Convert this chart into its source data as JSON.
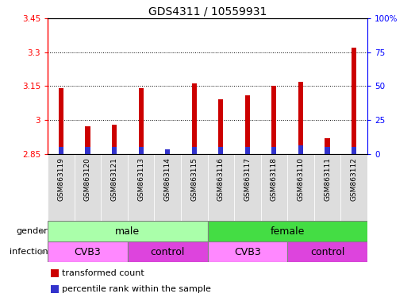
{
  "title": "GDS4311 / 10559931",
  "samples": [
    "GSM863119",
    "GSM863120",
    "GSM863121",
    "GSM863113",
    "GSM863114",
    "GSM863115",
    "GSM863116",
    "GSM863117",
    "GSM863118",
    "GSM863110",
    "GSM863111",
    "GSM863112"
  ],
  "transformed_count": [
    3.14,
    2.97,
    2.98,
    3.14,
    2.855,
    3.16,
    3.09,
    3.11,
    3.15,
    3.17,
    2.92,
    3.32
  ],
  "percentile_rank": [
    5,
    5,
    5,
    5,
    3,
    5,
    5,
    5,
    5,
    6,
    5,
    5
  ],
  "baseline": 2.85,
  "ylim_left": [
    2.85,
    3.45
  ],
  "ylim_right": [
    0,
    100
  ],
  "yticks_left": [
    2.85,
    3.0,
    3.15,
    3.3,
    3.45
  ],
  "ytick_labels_left": [
    "2.85",
    "3",
    "3.15",
    "3.3",
    "3.45"
  ],
  "yticks_right": [
    0,
    25,
    50,
    75,
    100
  ],
  "ytick_labels_right": [
    "0",
    "25",
    "50",
    "75",
    "100%"
  ],
  "grid_values": [
    3.0,
    3.15,
    3.3
  ],
  "bar_color_red": "#cc0000",
  "bar_color_blue": "#3333cc",
  "gender_groups": [
    {
      "label": "male",
      "start": 0,
      "end": 6,
      "color": "#aaffaa"
    },
    {
      "label": "female",
      "start": 6,
      "end": 12,
      "color": "#44dd44"
    }
  ],
  "infection_groups": [
    {
      "label": "CVB3",
      "start": 0,
      "end": 3,
      "color": "#ff88ff"
    },
    {
      "label": "control",
      "start": 3,
      "end": 6,
      "color": "#dd44dd"
    },
    {
      "label": "CVB3",
      "start": 6,
      "end": 9,
      "color": "#ff88ff"
    },
    {
      "label": "control",
      "start": 9,
      "end": 12,
      "color": "#dd44dd"
    }
  ],
  "legend_items": [
    {
      "label": "transformed count",
      "color": "#cc0000"
    },
    {
      "label": "percentile rank within the sample",
      "color": "#3333cc"
    }
  ],
  "title_fontsize": 10,
  "tick_fontsize": 7.5,
  "sample_fontsize": 6.5,
  "row_fontsize": 9,
  "label_fontsize": 8
}
